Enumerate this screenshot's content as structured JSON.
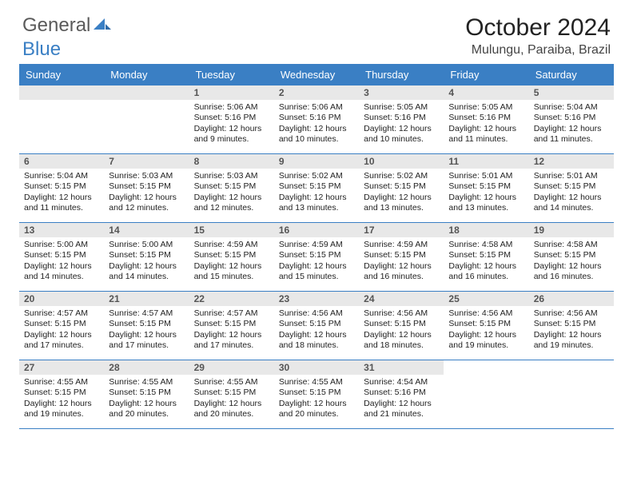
{
  "brand": {
    "part1": "General",
    "part2": "Blue"
  },
  "title": "October 2024",
  "location": "Mulungu, Paraiba, Brazil",
  "colors": {
    "header_bg": "#3a7fc4",
    "daynum_bg": "#e8e8e8",
    "text": "#222222",
    "border": "#3a7fc4"
  },
  "dow": [
    "Sunday",
    "Monday",
    "Tuesday",
    "Wednesday",
    "Thursday",
    "Friday",
    "Saturday"
  ],
  "weeks": [
    [
      {
        "blank": true
      },
      {
        "blank": true
      },
      {
        "n": "1",
        "sr": "Sunrise: 5:06 AM",
        "ss": "Sunset: 5:16 PM",
        "dl": "Daylight: 12 hours and 9 minutes."
      },
      {
        "n": "2",
        "sr": "Sunrise: 5:06 AM",
        "ss": "Sunset: 5:16 PM",
        "dl": "Daylight: 12 hours and 10 minutes."
      },
      {
        "n": "3",
        "sr": "Sunrise: 5:05 AM",
        "ss": "Sunset: 5:16 PM",
        "dl": "Daylight: 12 hours and 10 minutes."
      },
      {
        "n": "4",
        "sr": "Sunrise: 5:05 AM",
        "ss": "Sunset: 5:16 PM",
        "dl": "Daylight: 12 hours and 11 minutes."
      },
      {
        "n": "5",
        "sr": "Sunrise: 5:04 AM",
        "ss": "Sunset: 5:16 PM",
        "dl": "Daylight: 12 hours and 11 minutes."
      }
    ],
    [
      {
        "n": "6",
        "sr": "Sunrise: 5:04 AM",
        "ss": "Sunset: 5:15 PM",
        "dl": "Daylight: 12 hours and 11 minutes."
      },
      {
        "n": "7",
        "sr": "Sunrise: 5:03 AM",
        "ss": "Sunset: 5:15 PM",
        "dl": "Daylight: 12 hours and 12 minutes."
      },
      {
        "n": "8",
        "sr": "Sunrise: 5:03 AM",
        "ss": "Sunset: 5:15 PM",
        "dl": "Daylight: 12 hours and 12 minutes."
      },
      {
        "n": "9",
        "sr": "Sunrise: 5:02 AM",
        "ss": "Sunset: 5:15 PM",
        "dl": "Daylight: 12 hours and 13 minutes."
      },
      {
        "n": "10",
        "sr": "Sunrise: 5:02 AM",
        "ss": "Sunset: 5:15 PM",
        "dl": "Daylight: 12 hours and 13 minutes."
      },
      {
        "n": "11",
        "sr": "Sunrise: 5:01 AM",
        "ss": "Sunset: 5:15 PM",
        "dl": "Daylight: 12 hours and 13 minutes."
      },
      {
        "n": "12",
        "sr": "Sunrise: 5:01 AM",
        "ss": "Sunset: 5:15 PM",
        "dl": "Daylight: 12 hours and 14 minutes."
      }
    ],
    [
      {
        "n": "13",
        "sr": "Sunrise: 5:00 AM",
        "ss": "Sunset: 5:15 PM",
        "dl": "Daylight: 12 hours and 14 minutes."
      },
      {
        "n": "14",
        "sr": "Sunrise: 5:00 AM",
        "ss": "Sunset: 5:15 PM",
        "dl": "Daylight: 12 hours and 14 minutes."
      },
      {
        "n": "15",
        "sr": "Sunrise: 4:59 AM",
        "ss": "Sunset: 5:15 PM",
        "dl": "Daylight: 12 hours and 15 minutes."
      },
      {
        "n": "16",
        "sr": "Sunrise: 4:59 AM",
        "ss": "Sunset: 5:15 PM",
        "dl": "Daylight: 12 hours and 15 minutes."
      },
      {
        "n": "17",
        "sr": "Sunrise: 4:59 AM",
        "ss": "Sunset: 5:15 PM",
        "dl": "Daylight: 12 hours and 16 minutes."
      },
      {
        "n": "18",
        "sr": "Sunrise: 4:58 AM",
        "ss": "Sunset: 5:15 PM",
        "dl": "Daylight: 12 hours and 16 minutes."
      },
      {
        "n": "19",
        "sr": "Sunrise: 4:58 AM",
        "ss": "Sunset: 5:15 PM",
        "dl": "Daylight: 12 hours and 16 minutes."
      }
    ],
    [
      {
        "n": "20",
        "sr": "Sunrise: 4:57 AM",
        "ss": "Sunset: 5:15 PM",
        "dl": "Daylight: 12 hours and 17 minutes."
      },
      {
        "n": "21",
        "sr": "Sunrise: 4:57 AM",
        "ss": "Sunset: 5:15 PM",
        "dl": "Daylight: 12 hours and 17 minutes."
      },
      {
        "n": "22",
        "sr": "Sunrise: 4:57 AM",
        "ss": "Sunset: 5:15 PM",
        "dl": "Daylight: 12 hours and 17 minutes."
      },
      {
        "n": "23",
        "sr": "Sunrise: 4:56 AM",
        "ss": "Sunset: 5:15 PM",
        "dl": "Daylight: 12 hours and 18 minutes."
      },
      {
        "n": "24",
        "sr": "Sunrise: 4:56 AM",
        "ss": "Sunset: 5:15 PM",
        "dl": "Daylight: 12 hours and 18 minutes."
      },
      {
        "n": "25",
        "sr": "Sunrise: 4:56 AM",
        "ss": "Sunset: 5:15 PM",
        "dl": "Daylight: 12 hours and 19 minutes."
      },
      {
        "n": "26",
        "sr": "Sunrise: 4:56 AM",
        "ss": "Sunset: 5:15 PM",
        "dl": "Daylight: 12 hours and 19 minutes."
      }
    ],
    [
      {
        "n": "27",
        "sr": "Sunrise: 4:55 AM",
        "ss": "Sunset: 5:15 PM",
        "dl": "Daylight: 12 hours and 19 minutes."
      },
      {
        "n": "28",
        "sr": "Sunrise: 4:55 AM",
        "ss": "Sunset: 5:15 PM",
        "dl": "Daylight: 12 hours and 20 minutes."
      },
      {
        "n": "29",
        "sr": "Sunrise: 4:55 AM",
        "ss": "Sunset: 5:15 PM",
        "dl": "Daylight: 12 hours and 20 minutes."
      },
      {
        "n": "30",
        "sr": "Sunrise: 4:55 AM",
        "ss": "Sunset: 5:15 PM",
        "dl": "Daylight: 12 hours and 20 minutes."
      },
      {
        "n": "31",
        "sr": "Sunrise: 4:54 AM",
        "ss": "Sunset: 5:16 PM",
        "dl": "Daylight: 12 hours and 21 minutes."
      },
      {
        "blank": true
      },
      {
        "blank": true
      }
    ]
  ]
}
